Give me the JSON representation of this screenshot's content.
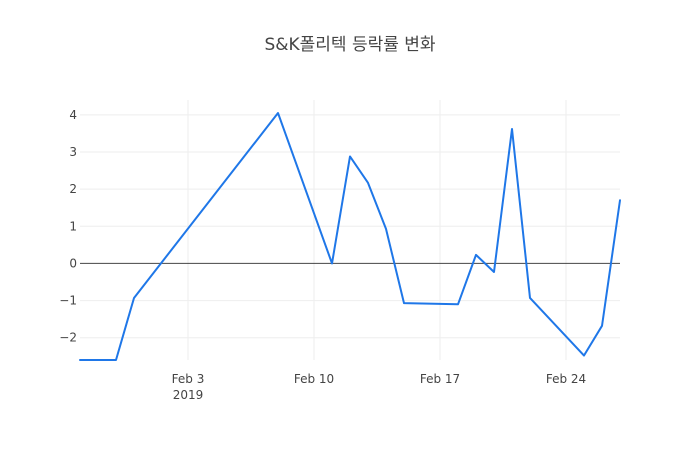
{
  "chart_data": {
    "type": "line",
    "title": "S&K폴리텍 등락률 변화",
    "xlabel": "",
    "ylabel": "",
    "x_axis_type": "date",
    "xlim": [
      "2019-01-28",
      "2019-02-27"
    ],
    "ylim": [
      -2.6,
      4.4
    ],
    "x_ticks": [
      {
        "date": "2019-02-03",
        "label": "Feb 3",
        "sublabel": "2019"
      },
      {
        "date": "2019-02-10",
        "label": "Feb 10",
        "sublabel": ""
      },
      {
        "date": "2019-02-17",
        "label": "Feb 17",
        "sublabel": ""
      },
      {
        "date": "2019-02-24",
        "label": "Feb 24",
        "sublabel": ""
      }
    ],
    "y_ticks": [
      {
        "value": -2,
        "label": "−2"
      },
      {
        "value": -1,
        "label": "−1"
      },
      {
        "value": 0,
        "label": "0"
      },
      {
        "value": 1,
        "label": "1"
      },
      {
        "value": 2,
        "label": "2"
      },
      {
        "value": 3,
        "label": "3"
      },
      {
        "value": 4,
        "label": "4"
      }
    ],
    "grid": true,
    "zero_line": true,
    "series": [
      {
        "color": "#1f77e8",
        "x": [
          "2019-01-28",
          "2019-01-30",
          "2019-01-31",
          "2019-02-08",
          "2019-02-11",
          "2019-02-12",
          "2019-02-13",
          "2019-02-14",
          "2019-02-15",
          "2019-02-18",
          "2019-02-19",
          "2019-02-20",
          "2019-02-21",
          "2019-02-22",
          "2019-02-25",
          "2019-02-26",
          "2019-02-27"
        ],
        "y": [
          -2.6,
          -2.6,
          -0.93,
          4.05,
          0.0,
          2.88,
          2.17,
          0.93,
          -1.07,
          -1.1,
          0.23,
          -0.23,
          3.62,
          -0.93,
          -2.48,
          -1.68,
          1.7
        ]
      }
    ]
  }
}
